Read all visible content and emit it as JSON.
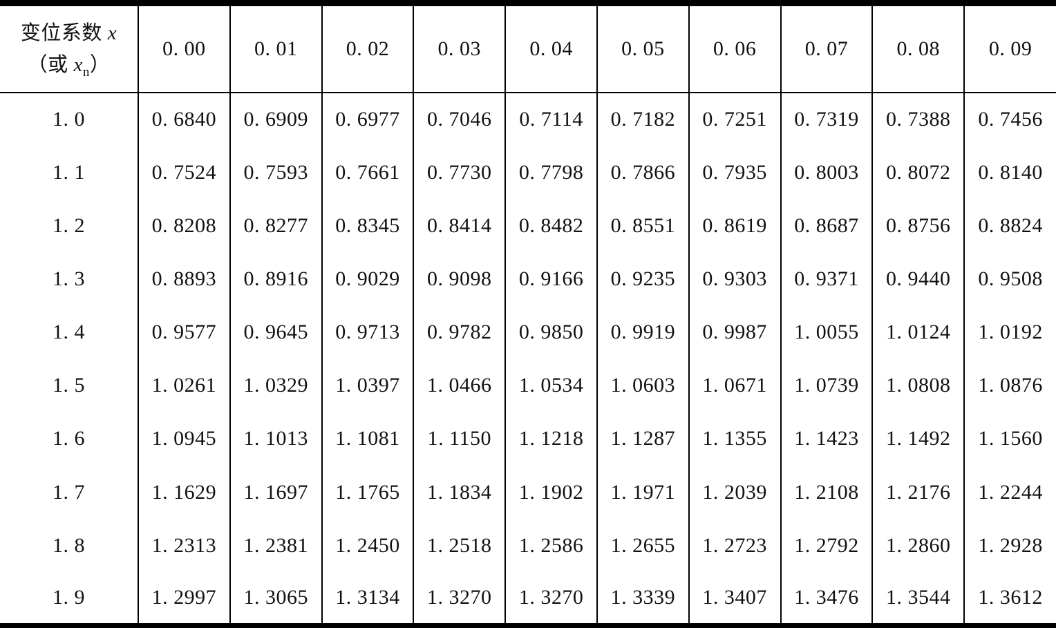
{
  "table": {
    "corner": {
      "line1_text": "变位系数 ",
      "line1_var": "x",
      "line2_pre": "（或 ",
      "line2_var": "x",
      "line2_sub": "n",
      "line2_post": "）"
    },
    "columns": [
      "0. 00",
      "0. 01",
      "0. 02",
      "0. 03",
      "0. 04",
      "0. 05",
      "0. 06",
      "0. 07",
      "0. 08",
      "0. 09"
    ],
    "rows": [
      {
        "label": "1. 0",
        "values": [
          "0. 6840",
          "0. 6909",
          "0. 6977",
          "0. 7046",
          "0. 7114",
          "0. 7182",
          "0. 7251",
          "0. 7319",
          "0. 7388",
          "0. 7456"
        ]
      },
      {
        "label": "1. 1",
        "values": [
          "0. 7524",
          "0. 7593",
          "0. 7661",
          "0. 7730",
          "0. 7798",
          "0. 7866",
          "0. 7935",
          "0. 8003",
          "0. 8072",
          "0. 8140"
        ]
      },
      {
        "label": "1. 2",
        "values": [
          "0. 8208",
          "0. 8277",
          "0. 8345",
          "0. 8414",
          "0. 8482",
          "0. 8551",
          "0. 8619",
          "0. 8687",
          "0. 8756",
          "0. 8824"
        ]
      },
      {
        "label": "1. 3",
        "values": [
          "0. 8893",
          "0. 8916",
          "0. 9029",
          "0. 9098",
          "0. 9166",
          "0. 9235",
          "0. 9303",
          "0. 9371",
          "0. 9440",
          "0. 9508"
        ]
      },
      {
        "label": "1. 4",
        "values": [
          "0. 9577",
          "0. 9645",
          "0. 9713",
          "0. 9782",
          "0. 9850",
          "0. 9919",
          "0. 9987",
          "1. 0055",
          "1. 0124",
          "1. 0192"
        ]
      },
      {
        "label": "1. 5",
        "values": [
          "1. 0261",
          "1. 0329",
          "1. 0397",
          "1. 0466",
          "1. 0534",
          "1. 0603",
          "1. 0671",
          "1. 0739",
          "1. 0808",
          "1. 0876"
        ]
      },
      {
        "label": "1. 6",
        "values": [
          "1. 0945",
          "1. 1013",
          "1. 1081",
          "1. 1150",
          "1. 1218",
          "1. 1287",
          "1. 1355",
          "1. 1423",
          "1. 1492",
          "1. 1560"
        ]
      },
      {
        "label": "1. 7",
        "values": [
          "1. 1629",
          "1. 1697",
          "1. 1765",
          "1. 1834",
          "1. 1902",
          "1. 1971",
          "1. 2039",
          "1. 2108",
          "1. 2176",
          "1. 2244"
        ]
      },
      {
        "label": "1. 8",
        "values": [
          "1. 2313",
          "1. 2381",
          "1. 2450",
          "1. 2518",
          "1. 2586",
          "1. 2655",
          "1. 2723",
          "1. 2792",
          "1. 2860",
          "1. 2928"
        ]
      },
      {
        "label": "1. 9",
        "values": [
          "1. 2997",
          "1. 3065",
          "1. 3134",
          "1. 3270",
          "1. 3270",
          "1. 3339",
          "1. 3407",
          "1. 3476",
          "1. 3544",
          "1. 3612"
        ]
      }
    ]
  }
}
